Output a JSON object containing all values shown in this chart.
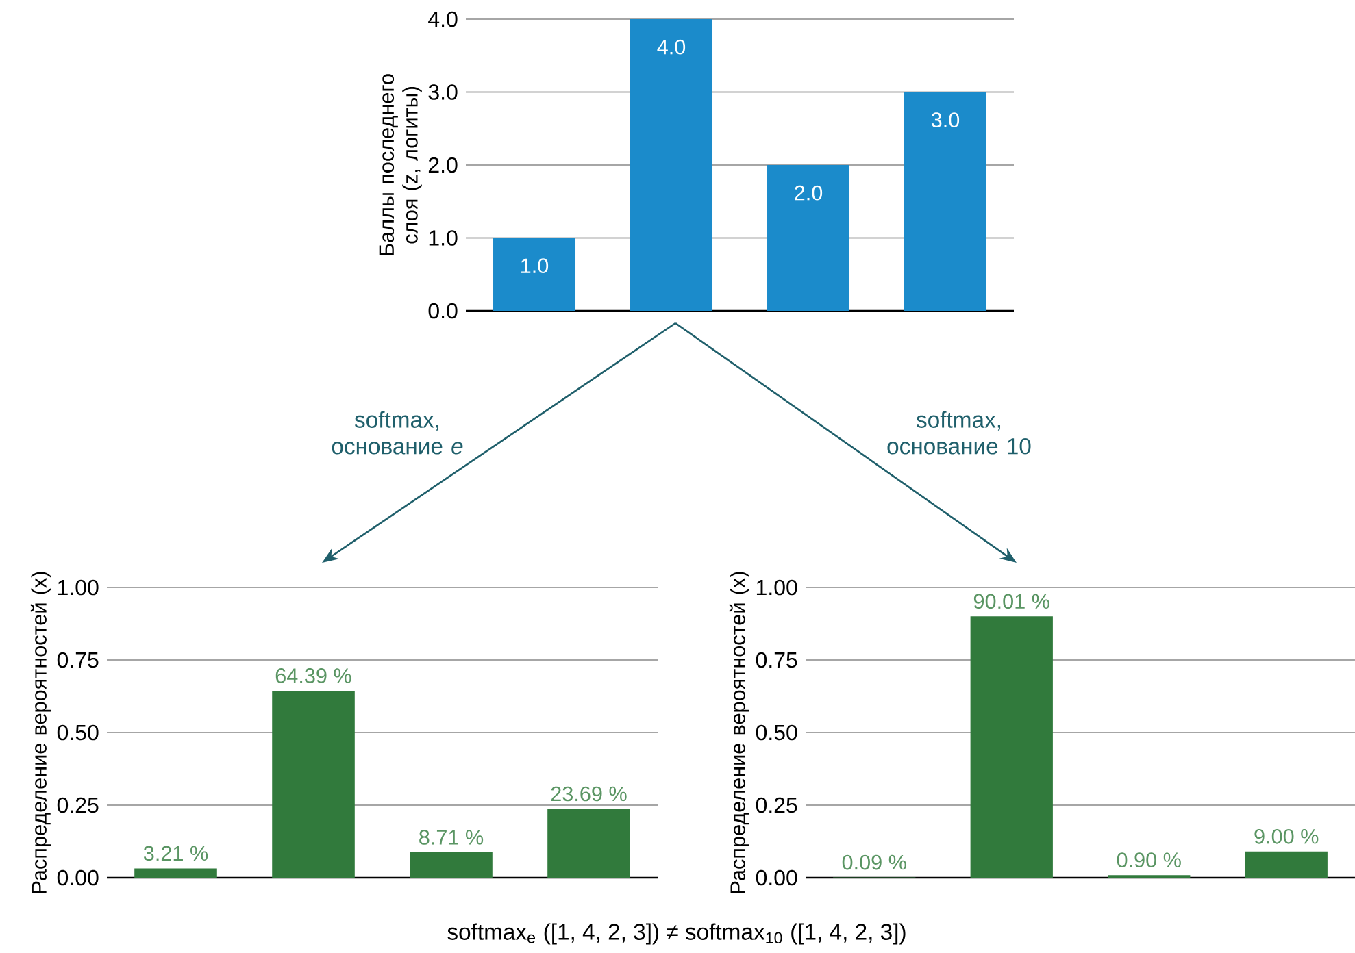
{
  "chart_data": [
    {
      "type": "bar",
      "ylabel": "Баллы последнего слоя (z, логиты)",
      "categories": [
        null,
        null,
        null,
        null
      ],
      "values": [
        1,
        4,
        2,
        3
      ],
      "color": "#1b8bcb",
      "value_labels": [
        "1.0",
        "4.0",
        "2.0",
        "3.0"
      ],
      "ylim": [
        0,
        4
      ],
      "yticks": [
        {
          "value": 0,
          "label": "0.0"
        },
        {
          "value": 1,
          "label": "1.0"
        },
        {
          "value": 2,
          "label": "2.0"
        },
        {
          "value": 3,
          "label": "3.0"
        },
        {
          "value": 4,
          "label": "4.0"
        }
      ],
      "grid": "y",
      "annotations": [
        "softmax, основание *e*",
        "softmax, основание 10",
        "softmax$_{e}$ ([1, 4, 2, 3]) ≠ softmax$_{10}$ ([1, 4, 2, 3])"
      ]
    },
    {
      "type": "bar",
      "ylabel": "Распределение вероятностей (x)",
      "categories": [
        null,
        null,
        null,
        null
      ],
      "values": [
        0.0321,
        0.6439,
        0.0871,
        0.2369
      ],
      "color": "#317a3c",
      "value_labels": [
        "3.21 %",
        "64.39 %",
        "8.71 %",
        "23.69 %"
      ],
      "ylim": [
        0,
        1
      ],
      "yticks": [
        {
          "value": 0,
          "label": "0.00"
        },
        {
          "value": 0.25,
          "label": "0.25"
        },
        {
          "value": 0.5,
          "label": "0.50"
        },
        {
          "value": 0.75,
          "label": "0.75"
        },
        {
          "value": 1,
          "label": "1.00"
        }
      ],
      "grid": "y"
    },
    {
      "type": "bar",
      "ylabel": "Распределение вероятностей (x)",
      "categories": [
        null,
        null,
        null,
        null
      ],
      "values": [
        0.0009,
        0.9001,
        0.009,
        0.09
      ],
      "color": "#317a3c",
      "value_labels": [
        "0.09 %",
        "90.01 %",
        "0.90 %",
        "9.00 %"
      ],
      "ylim": [
        0,
        1
      ],
      "yticks": [
        {
          "value": 0,
          "label": "0.00"
        },
        {
          "value": 0.25,
          "label": "0.25"
        },
        {
          "value": 0.5,
          "label": "0.50"
        },
        {
          "value": 0.75,
          "label": "0.75"
        },
        {
          "value": 1,
          "label": "1.00"
        }
      ],
      "grid": "y"
    }
  ]
}
